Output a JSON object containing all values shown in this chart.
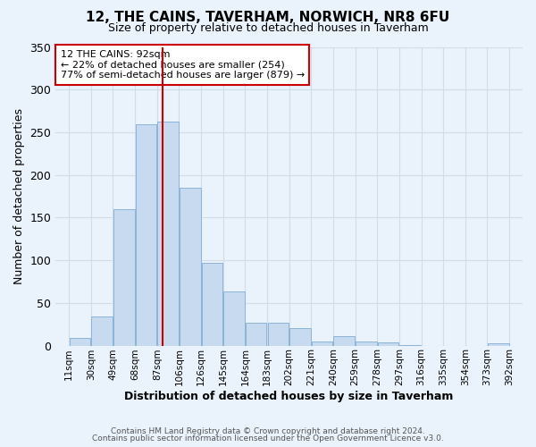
{
  "title": "12, THE CAINS, TAVERHAM, NORWICH, NR8 6FU",
  "subtitle": "Size of property relative to detached houses in Taverham",
  "xlabel": "Distribution of detached houses by size in Taverham",
  "ylabel": "Number of detached properties",
  "bar_color": "#c8daf0",
  "bar_edge_color": "#8ab4d8",
  "bar_left_edges": [
    11,
    30,
    49,
    68,
    87,
    106,
    125,
    144,
    163,
    182,
    201,
    220,
    239,
    258,
    277,
    296,
    315,
    334,
    353,
    372
  ],
  "bar_heights": [
    9,
    34,
    160,
    259,
    262,
    185,
    97,
    63,
    27,
    27,
    20,
    5,
    11,
    5,
    4,
    1,
    0,
    0,
    0,
    3
  ],
  "bin_width": 19,
  "x_tick_labels": [
    "11sqm",
    "30sqm",
    "49sqm",
    "68sqm",
    "87sqm",
    "106sqm",
    "126sqm",
    "145sqm",
    "164sqm",
    "183sqm",
    "202sqm",
    "221sqm",
    "240sqm",
    "259sqm",
    "278sqm",
    "297sqm",
    "316sqm",
    "335sqm",
    "354sqm",
    "373sqm",
    "392sqm"
  ],
  "x_tick_positions": [
    11,
    30,
    49,
    68,
    87,
    106,
    125,
    144,
    163,
    182,
    201,
    220,
    239,
    258,
    277,
    296,
    315,
    334,
    353,
    372,
    391
  ],
  "ylim": [
    0,
    350
  ],
  "yticks": [
    0,
    50,
    100,
    150,
    200,
    250,
    300,
    350
  ],
  "vline_x": 92,
  "vline_color": "#cc0000",
  "annotation_title": "12 THE CAINS: 92sqm",
  "annotation_line1": "← 22% of detached houses are smaller (254)",
  "annotation_line2": "77% of semi-detached houses are larger (879) →",
  "annotation_box_color": "white",
  "annotation_box_edge_color": "#cc0000",
  "grid_color": "#d0dce8",
  "bg_color": "#eaf2fb",
  "footer_line1": "Contains HM Land Registry data © Crown copyright and database right 2024.",
  "footer_line2": "Contains public sector information licensed under the Open Government Licence v3.0."
}
